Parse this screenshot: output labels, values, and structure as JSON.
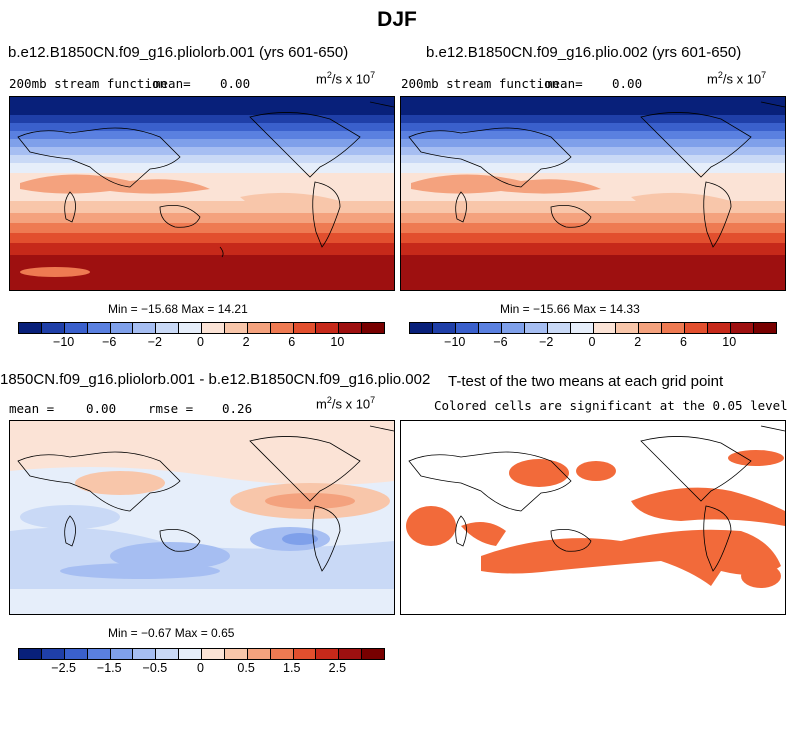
{
  "figure_title": "DJF",
  "panels": [
    {
      "title": "b.e12.B1850CN.f09_g16.pliolorb.001 (yrs 601-650)",
      "field_label": "200mb stream function",
      "mean_label": "mean=",
      "mean_value": "0.00",
      "units": "m",
      "units_sup1": "2",
      "units_mid": "/s x 10",
      "units_sup2": "7",
      "min_max": "Min = −15.68 Max =  14.21"
    },
    {
      "title": "b.e12.B1850CN.f09_g16.plio.002 (yrs 601-650)",
      "field_label": "200mb stream function",
      "mean_label": "mean=",
      "mean_value": "0.00",
      "units": "m",
      "units_sup1": "2",
      "units_mid": "/s x 10",
      "units_sup2": "7",
      "min_max": "Min = −15.66 Max =  14.33"
    },
    {
      "title": "1850CN.f09_g16.pliolorb.001 - b.e12.B1850CN.f09_g16.plio.002",
      "mean_label": "mean =",
      "mean_value": "0.00",
      "rmse_label": "rmse =",
      "rmse_value": "0.26",
      "units": "m",
      "units_sup1": "2",
      "units_mid": "/s x 10",
      "units_sup2": "7",
      "min_max": "Min =  −0.67 Max =   0.65"
    },
    {
      "title": "T-test of the two means at each grid point",
      "subtitle": "Colored cells are significant at the 0.05 level"
    }
  ],
  "colorbars": {
    "field": {
      "ticks": [
        "−10",
        "−6",
        "−2",
        "0",
        "2",
        "6",
        "10"
      ],
      "tick_index": [
        2,
        4,
        6,
        8,
        10,
        12,
        14
      ]
    },
    "diff": {
      "ticks": [
        "−2.5",
        "−1.5",
        "−0.5",
        "0",
        "0.5",
        "1.5",
        "2.5"
      ],
      "tick_index": [
        2,
        4,
        6,
        8,
        10,
        12,
        14
      ]
    },
    "colors": [
      "#08207a",
      "#1f3fa8",
      "#3a60cc",
      "#5a80e0",
      "#7fa0ea",
      "#a6bef2",
      "#c9d9f6",
      "#e6eefa",
      "#fbe3d6",
      "#f8c6aa",
      "#f4a27e",
      "#ee7a52",
      "#e24f2e",
      "#c6291a",
      "#9e1010",
      "#780000"
    ]
  },
  "significance_color": "#f26a3a"
}
